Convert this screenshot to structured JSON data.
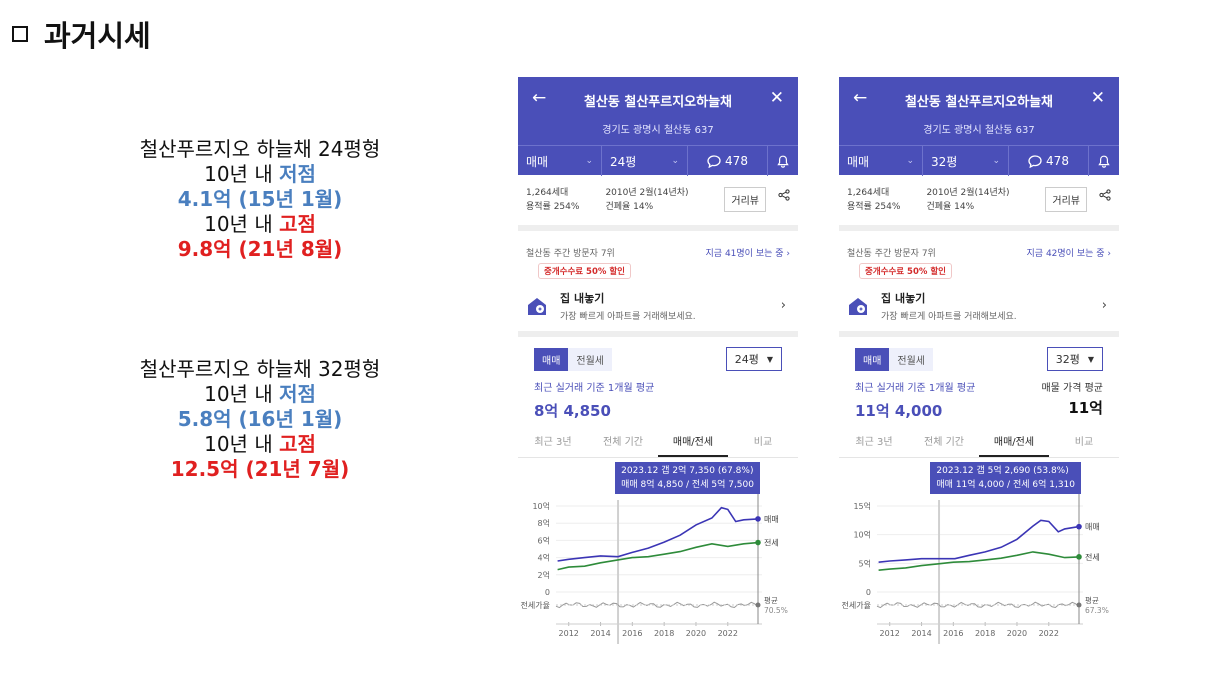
{
  "slide": {
    "title": "과거시세"
  },
  "summaries": [
    {
      "name": "철산푸르지오 하늘채 24평형",
      "low_label": "10년 내 ",
      "low_word": "저점",
      "low_value": "4.1억 (15년 1월)",
      "high_label": "10년 내 ",
      "high_word": "고점",
      "high_value": "9.8억 (21년 8월)"
    },
    {
      "name": "철산푸르지오 하늘채 32평형",
      "low_label": "10년 내 ",
      "low_word": "저점",
      "low_value": "5.8억 (16년 1월)",
      "high_label": "10년 내 ",
      "high_word": "고점",
      "high_value": "12.5억 (21년 7월)"
    }
  ],
  "phones": [
    {
      "title": "철산동 철산푸르지오하늘채",
      "address": "경기도 광명시 철산동 637",
      "deal_type": "매매",
      "size": "24평",
      "comments": "478",
      "households": "1,264세대",
      "far": "용적률 254%",
      "built": "2010년 2월(14년차)",
      "bcr": "건폐율 14%",
      "street_view": "거리뷰",
      "visit_rank": "철산동 주간 방문자 7위",
      "viewing_now": "지금 41명이 보는 중 ›",
      "promo": "중개수수료 50% 할인",
      "sell_title": "집 내놓기",
      "sell_sub": "가장 빠르게 아파트를 거래해보세요.",
      "seg_on": "매매",
      "seg_off": "전월세",
      "size_select": "24평",
      "avg_label": "최근 실거래 기준 1개월 평균",
      "avg_value": "8억 4,850",
      "ask_label": "",
      "ask_value": "",
      "tabs": [
        "최근 3년",
        "전체 기간",
        "매매/전세",
        "비교"
      ],
      "tooltip_line1": "2023.12  갭 2억 7,350 (67.8%)",
      "tooltip_line2": "매매 8억 4,850 / 전세 5억 7,500",
      "chart_data": {
        "type": "line",
        "x_ticks": [
          "2012",
          "2014",
          "2016",
          "2018",
          "2020",
          "2022"
        ],
        "y_ticks": [
          "10억",
          "8억",
          "6억",
          "4억",
          "2억",
          "0"
        ],
        "ylim": [
          0,
          10
        ],
        "series": [
          {
            "name": "매매",
            "color": "#3b35b5",
            "points": [
              [
                2011.3,
                3.6
              ],
              [
                2012,
                3.8
              ],
              [
                2013,
                4.0
              ],
              [
                2014,
                4.2
              ],
              [
                2015.1,
                4.1
              ],
              [
                2016,
                4.6
              ],
              [
                2017,
                5.1
              ],
              [
                2018,
                5.8
              ],
              [
                2019,
                6.6
              ],
              [
                2020,
                7.8
              ],
              [
                2021,
                8.6
              ],
              [
                2021.6,
                9.8
              ],
              [
                2022,
                9.6
              ],
              [
                2022.5,
                8.2
              ],
              [
                2023,
                8.4
              ],
              [
                2023.9,
                8.5
              ]
            ]
          },
          {
            "name": "전세",
            "color": "#2e8b3a",
            "points": [
              [
                2011.3,
                2.6
              ],
              [
                2012,
                2.9
              ],
              [
                2013,
                3.0
              ],
              [
                2014,
                3.4
              ],
              [
                2015,
                3.7
              ],
              [
                2016,
                4.0
              ],
              [
                2017,
                4.1
              ],
              [
                2018,
                4.4
              ],
              [
                2019,
                4.7
              ],
              [
                2020,
                5.2
              ],
              [
                2021,
                5.6
              ],
              [
                2022,
                5.3
              ],
              [
                2023,
                5.6
              ],
              [
                2023.9,
                5.75
              ]
            ]
          }
        ],
        "ratio_label": "전세가율",
        "avg_label": "평균",
        "avg_value": "70.5%"
      }
    },
    {
      "title": "철산동 철산푸르지오하늘채",
      "address": "경기도 광명시 철산동 637",
      "deal_type": "매매",
      "size": "32평",
      "comments": "478",
      "households": "1,264세대",
      "far": "용적률 254%",
      "built": "2010년 2월(14년차)",
      "bcr": "건폐율 14%",
      "street_view": "거리뷰",
      "visit_rank": "철산동 주간 방문자 7위",
      "viewing_now": "지금 42명이 보는 중 ›",
      "promo": "중개수수료 50% 할인",
      "sell_title": "집 내놓기",
      "sell_sub": "가장 빠르게 아파트를 거래해보세요.",
      "seg_on": "매매",
      "seg_off": "전월세",
      "size_select": "32평",
      "avg_label": "최근 실거래 기준 1개월 평균",
      "avg_value": "11억 4,000",
      "ask_label": "매물 가격 평균",
      "ask_value": "11억",
      "tabs": [
        "최근 3년",
        "전체 기간",
        "매매/전세",
        "비교"
      ],
      "tooltip_line1": "2023.12  갭 5억 2,690 (53.8%)",
      "tooltip_line2": "매매 11억 4,000 / 전세 6억 1,310",
      "chart_data": {
        "type": "line",
        "x_ticks": [
          "2012",
          "2014",
          "2016",
          "2018",
          "2020",
          "2022"
        ],
        "y_ticks": [
          "15억",
          "10억",
          "5억",
          "0"
        ],
        "ylim": [
          0,
          15
        ],
        "series": [
          {
            "name": "매매",
            "color": "#3b35b5",
            "points": [
              [
                2011.3,
                5.2
              ],
              [
                2012,
                5.4
              ],
              [
                2013,
                5.6
              ],
              [
                2014,
                5.8
              ],
              [
                2016.1,
                5.8
              ],
              [
                2017,
                6.4
              ],
              [
                2018,
                7.0
              ],
              [
                2019,
                7.8
              ],
              [
                2020,
                9.2
              ],
              [
                2021,
                11.5
              ],
              [
                2021.5,
                12.5
              ],
              [
                2022,
                12.3
              ],
              [
                2022.6,
                10.5
              ],
              [
                2023,
                11.0
              ],
              [
                2023.9,
                11.4
              ]
            ]
          },
          {
            "name": "전세",
            "color": "#2e8b3a",
            "points": [
              [
                2011.3,
                3.8
              ],
              [
                2012,
                4.0
              ],
              [
                2013,
                4.2
              ],
              [
                2014,
                4.6
              ],
              [
                2015,
                4.9
              ],
              [
                2016,
                5.2
              ],
              [
                2017,
                5.3
              ],
              [
                2018,
                5.6
              ],
              [
                2019,
                5.9
              ],
              [
                2020,
                6.4
              ],
              [
                2021,
                7.0
              ],
              [
                2022,
                6.6
              ],
              [
                2023,
                6.0
              ],
              [
                2023.9,
                6.13
              ]
            ]
          }
        ],
        "ratio_label": "전세가율",
        "avg_label": "평균",
        "avg_value": "67.3%"
      }
    }
  ]
}
